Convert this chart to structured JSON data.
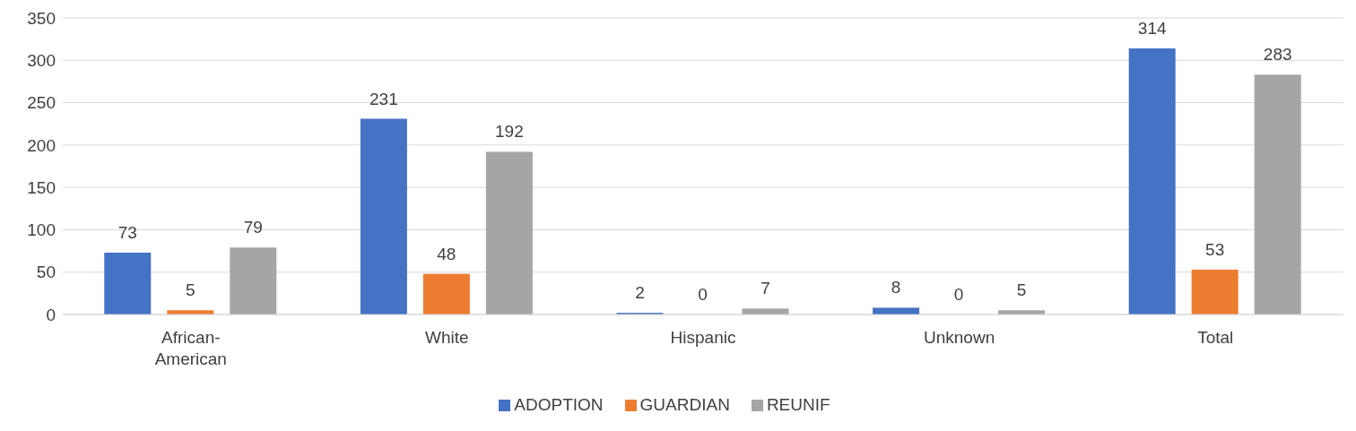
{
  "chart_data": {
    "type": "bar",
    "categories": [
      "African-American",
      "White",
      "Hispanic",
      "Unknown",
      "Total"
    ],
    "series": [
      {
        "name": "ADOPTION",
        "color": "#4472c4",
        "values": [
          73,
          231,
          2,
          8,
          314
        ]
      },
      {
        "name": "GUARDIAN",
        "color": "#ed7d31",
        "values": [
          5,
          48,
          0,
          0,
          53
        ]
      },
      {
        "name": "REUNIF",
        "color": "#a5a5a5",
        "values": [
          79,
          192,
          7,
          5,
          283
        ]
      }
    ],
    "ylim": [
      0,
      350
    ],
    "yticks": [
      0,
      50,
      100,
      150,
      200,
      250,
      300,
      350
    ],
    "grid": "y",
    "legend": "bottom",
    "data_labels": true
  }
}
